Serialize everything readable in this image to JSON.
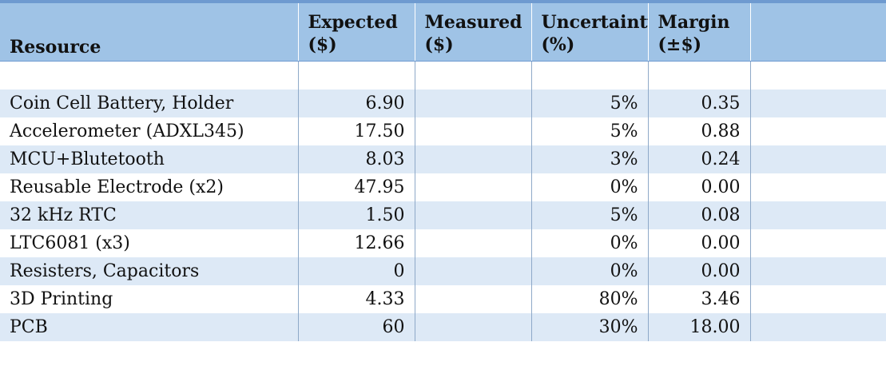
{
  "table": {
    "headers": [
      "Resource",
      "Expected ($)",
      "Measured ($)",
      "Uncertainty (%)",
      "Margin (±$)",
      ""
    ],
    "header_lines": [
      [
        "",
        "Resource"
      ],
      [
        "Expected",
        "($)"
      ],
      [
        "Measured",
        "($)"
      ],
      [
        "Uncertainty",
        "(%)"
      ],
      [
        "Margin",
        "(±$)"
      ],
      [
        "",
        ""
      ]
    ],
    "rows": [
      [
        "",
        "",
        "",
        "",
        "",
        ""
      ],
      [
        "Coin Cell Battery, Holder",
        "6.90",
        "",
        "5%",
        "0.35",
        ""
      ],
      [
        "Accelerometer (ADXL345)",
        "17.50",
        "",
        "5%",
        "0.88",
        ""
      ],
      [
        "MCU+Blutetooth",
        "8.03",
        "",
        "3%",
        "0.24",
        ""
      ],
      [
        "Reusable Electrode (x2)",
        "47.95",
        "",
        "0%",
        "0.00",
        ""
      ],
      [
        "32 kHz RTC",
        "1.50",
        "",
        "5%",
        "0.08",
        ""
      ],
      [
        "LTC6081 (x3)",
        "12.66",
        "",
        "0%",
        "0.00",
        ""
      ],
      [
        "Resisters, Capacitors",
        "0",
        "",
        "0%",
        "0.00",
        ""
      ],
      [
        "3D Printing",
        "4.33",
        "",
        "80%",
        "3.46",
        ""
      ],
      [
        "PCB",
        "60",
        "",
        "30%",
        "18.00",
        ""
      ]
    ]
  },
  "colors": {
    "header_bg": "#9fc3e6",
    "header_border": "#6e9ad0",
    "band_bg": "#dde9f6",
    "plain_bg": "#ffffff"
  }
}
